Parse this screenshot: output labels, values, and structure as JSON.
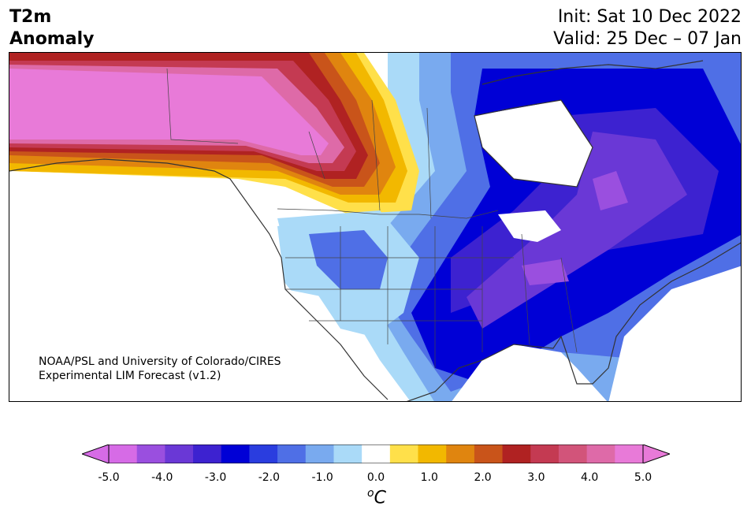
{
  "title": {
    "left_line1": "T2m",
    "left_line2": "Anomaly",
    "init": "Init: Sat 10 Dec 2022",
    "valid": "Valid: 25 Dec – 07 Jan"
  },
  "credit": {
    "line1": "NOAA/PSL and University of Colorado/CIRES",
    "line2": "Experimental LIM Forecast (v1.2)"
  },
  "colorbar": {
    "ticks": [
      "-5.0",
      "-4.0",
      "-3.0",
      "-2.0",
      "-1.0",
      "0.0",
      "1.0",
      "2.0",
      "3.0",
      "4.0",
      "5.0"
    ],
    "colors": [
      "#d66be6",
      "#9a4fdf",
      "#6a38d6",
      "#3d22d0",
      "#0000d6",
      "#2a3ddf",
      "#4f6fe6",
      "#79aaef",
      "#aadaf8",
      "#ffffff",
      "#ffe04a",
      "#f2b800",
      "#e0850f",
      "#c9541a",
      "#b02222",
      "#c43a52",
      "#d2547a",
      "#de6aa8",
      "#e87ad8"
    ],
    "under_color": "#d66be6",
    "over_color": "#e87ad8",
    "unit_base": "C",
    "unit_sup": "o"
  },
  "map": {
    "region": "North America",
    "ocean_color": "#ffffff",
    "coastline_color": "#333333"
  }
}
